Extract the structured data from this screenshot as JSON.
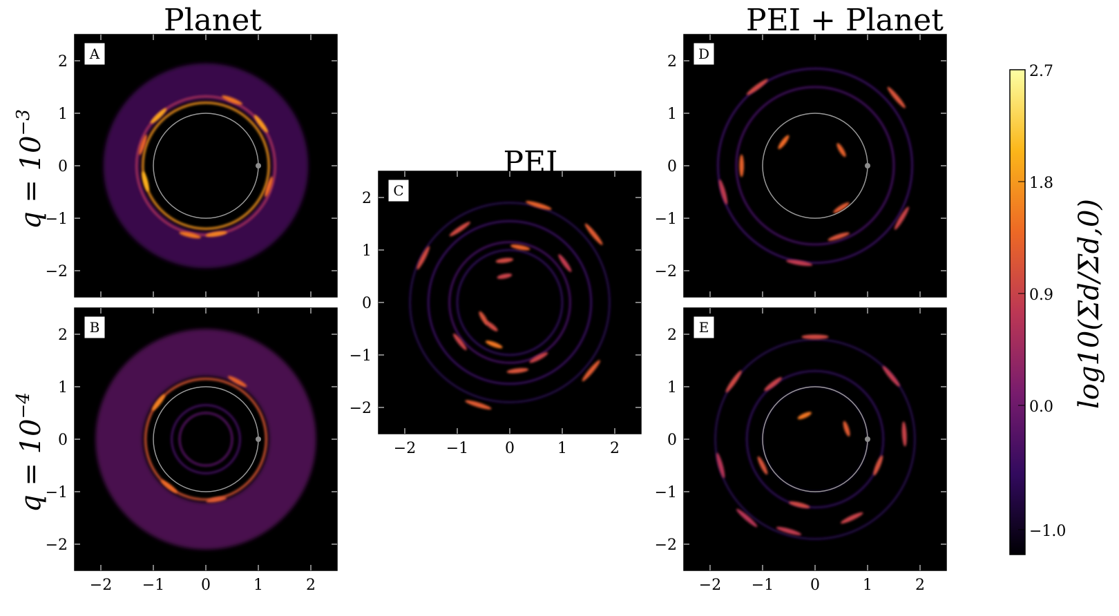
{
  "figure": {
    "column_titles": [
      "Planet",
      "PEI",
      "PEI + Planet"
    ],
    "row_labels": [
      "q = 10",
      "q = 10"
    ],
    "row_label_exponents": [
      "−3",
      "−4"
    ],
    "colorbar": {
      "label": "log10(Σd/Σd,0)",
      "ticks": [
        "2.7",
        "1.8",
        "0.9",
        "0.0",
        "−1.0"
      ],
      "tick_values": [
        2.7,
        1.8,
        0.9,
        0.0,
        -1.0
      ],
      "range": [
        -1.2,
        2.7
      ],
      "colormap": "inferno",
      "colors": [
        "#000004",
        "#320a5e",
        "#781c6d",
        "#bc3754",
        "#ed6925",
        "#fbb61a",
        "#fcffa4"
      ]
    }
  },
  "chart_data": [
    {
      "type": "heatmap",
      "panel": "A",
      "xlim": [
        -2.5,
        2.5
      ],
      "ylim": [
        -2.5,
        2.5
      ],
      "xticks": [
        "−2",
        "−1",
        "0",
        "1",
        "2"
      ],
      "xtick_values": [
        -2,
        -1,
        0,
        1,
        2
      ],
      "yticks": [
        "2",
        "1",
        "0",
        "−1",
        "−2"
      ],
      "ytick_values": [
        2,
        1,
        0,
        -1,
        -2
      ],
      "show_xticklabels": false,
      "planet": {
        "x": 1.0,
        "y": 0.0
      },
      "reference_circle_radius": 1.0,
      "disk": {
        "inner_radius": 1.25,
        "outer_radius": 1.95,
        "level": -0.3
      },
      "rings": [
        {
          "r": 1.2,
          "level": 1.8
        },
        {
          "r": 1.32,
          "level": 0.6
        }
      ],
      "clumps": [
        {
          "x": -0.9,
          "y": 0.95,
          "level": 1.9
        },
        {
          "x": 1.05,
          "y": 0.8,
          "level": 1.8
        },
        {
          "x": -1.15,
          "y": -0.3,
          "level": 2.0
        },
        {
          "x": 0.2,
          "y": -1.3,
          "level": 1.6
        },
        {
          "x": -0.3,
          "y": -1.32,
          "level": 1.5
        },
        {
          "x": 1.2,
          "y": -0.4,
          "level": 1.4
        },
        {
          "x": 0.5,
          "y": 1.25,
          "level": 1.5
        },
        {
          "x": -1.2,
          "y": 0.4,
          "level": 1.3
        }
      ]
    },
    {
      "type": "heatmap",
      "panel": "B",
      "xlim": [
        -2.5,
        2.5
      ],
      "ylim": [
        -2.5,
        2.5
      ],
      "xticks": [
        "−2",
        "−1",
        "0",
        "1",
        "2"
      ],
      "xtick_values": [
        -2,
        -1,
        0,
        1,
        2
      ],
      "yticks": [
        "2",
        "1",
        "0",
        "−1",
        "−2"
      ],
      "ytick_values": [
        2,
        1,
        0,
        -1,
        -2
      ],
      "show_xticklabels": true,
      "planet": {
        "x": 1.0,
        "y": 0.0
      },
      "reference_circle_radius": 1.0,
      "disk": {
        "inner_radius": 1.2,
        "outer_radius": 2.1,
        "level": -0.1
      },
      "rings": [
        {
          "r": 0.5,
          "level": -0.2
        },
        {
          "r": 0.65,
          "level": -0.4
        },
        {
          "r": 1.15,
          "level": 1.2
        }
      ],
      "clumps": [
        {
          "x": -0.9,
          "y": 0.7,
          "level": 1.6
        },
        {
          "x": 0.6,
          "y": 1.1,
          "level": 1.3
        },
        {
          "x": -0.7,
          "y": -0.9,
          "level": 1.4
        },
        {
          "x": 0.2,
          "y": -1.15,
          "level": 1.2
        }
      ]
    },
    {
      "type": "heatmap",
      "panel": "C",
      "xlim": [
        -2.5,
        2.5
      ],
      "ylim": [
        -2.5,
        2.5
      ],
      "xticks": [
        "−2",
        "−1",
        "0",
        "1",
        "2"
      ],
      "xtick_values": [
        -2,
        -1,
        0,
        1,
        2
      ],
      "yticks": [
        "2",
        "1",
        "0",
        "−1",
        "−2"
      ],
      "ytick_values": [
        2,
        1,
        0,
        -1,
        -2
      ],
      "show_xticklabels": true,
      "planet": null,
      "reference_circle_radius": null,
      "rings": [
        {
          "r": 1.0,
          "level": -0.6
        },
        {
          "r": 1.15,
          "level": -0.4
        },
        {
          "r": 1.55,
          "level": -0.5
        },
        {
          "r": 1.9,
          "level": -0.7
        }
      ],
      "clumps": [
        {
          "x": 0.2,
          "y": 1.05,
          "level": 1.3
        },
        {
          "x": -0.1,
          "y": 0.8,
          "level": 1.0
        },
        {
          "x": -0.1,
          "y": 0.5,
          "level": 0.9
        },
        {
          "x": -0.5,
          "y": -0.3,
          "level": 1.1
        },
        {
          "x": -0.35,
          "y": -0.45,
          "level": 1.0
        },
        {
          "x": -0.3,
          "y": -0.8,
          "level": 1.5
        },
        {
          "x": -0.95,
          "y": -0.75,
          "level": 0.9
        },
        {
          "x": 0.55,
          "y": -1.05,
          "level": 0.9
        },
        {
          "x": 1.05,
          "y": 0.75,
          "level": 0.8
        },
        {
          "x": -0.95,
          "y": 1.4,
          "level": 1.0
        },
        {
          "x": 1.6,
          "y": 1.3,
          "level": 1.2
        },
        {
          "x": 1.55,
          "y": -1.3,
          "level": 1.2
        },
        {
          "x": -0.6,
          "y": -1.95,
          "level": 1.2
        },
        {
          "x": 0.55,
          "y": 1.85,
          "level": 1.3
        },
        {
          "x": -1.65,
          "y": 0.85,
          "level": 1.0
        },
        {
          "x": 0.15,
          "y": -1.3,
          "level": 1.1
        }
      ]
    },
    {
      "type": "heatmap",
      "panel": "D",
      "xlim": [
        -2.5,
        2.5
      ],
      "ylim": [
        -2.5,
        2.5
      ],
      "xticks": [
        "−2",
        "−1",
        "0",
        "1",
        "2"
      ],
      "xtick_values": [
        -2,
        -1,
        0,
        1,
        2
      ],
      "yticks": [
        "2",
        "1",
        "0",
        "−1",
        "−2"
      ],
      "ytick_values": [
        2,
        1,
        0,
        -1,
        -2
      ],
      "show_xticklabels": false,
      "planet": {
        "x": 1.0,
        "y": 0.0
      },
      "reference_circle_radius": 1.0,
      "rings": [
        {
          "r": 1.5,
          "level": -0.4
        },
        {
          "r": 1.85,
          "level": -0.5
        }
      ],
      "clumps": [
        {
          "x": -0.6,
          "y": 0.45,
          "level": 1.4
        },
        {
          "x": 0.5,
          "y": 0.3,
          "level": 1.3
        },
        {
          "x": 0.5,
          "y": -0.8,
          "level": 1.2
        },
        {
          "x": -1.4,
          "y": 0.0,
          "level": 1.3
        },
        {
          "x": 0.45,
          "y": -1.35,
          "level": 1.1
        },
        {
          "x": 1.55,
          "y": 1.3,
          "level": 1.1
        },
        {
          "x": -1.1,
          "y": 1.5,
          "level": 1.0
        },
        {
          "x": -0.3,
          "y": -1.85,
          "level": 0.8
        },
        {
          "x": 1.65,
          "y": -1.0,
          "level": 0.9
        },
        {
          "x": -1.75,
          "y": -0.5,
          "level": 0.8
        }
      ]
    },
    {
      "type": "heatmap",
      "panel": "E",
      "xlim": [
        -2.5,
        2.5
      ],
      "ylim": [
        -2.5,
        2.5
      ],
      "xticks": [
        "−2",
        "−1",
        "0",
        "1",
        "2"
      ],
      "xtick_values": [
        -2,
        -1,
        0,
        1,
        2
      ],
      "yticks": [
        "2",
        "1",
        "0",
        "−1",
        "−2"
      ],
      "ytick_values": [
        2,
        1,
        0,
        -1,
        -2
      ],
      "show_xticklabels": true,
      "planet": {
        "x": 1.0,
        "y": 0.0
      },
      "reference_circle_radius": 1.0,
      "rings": [
        {
          "r": 1.0,
          "level": -1.0
        },
        {
          "r": 1.3,
          "level": -0.6
        },
        {
          "r": 1.9,
          "level": -0.7
        }
      ],
      "clumps": [
        {
          "x": -0.2,
          "y": 0.45,
          "level": 1.5
        },
        {
          "x": 0.6,
          "y": 0.2,
          "level": 1.2
        },
        {
          "x": -1.0,
          "y": -0.5,
          "level": 1.1
        },
        {
          "x": -0.8,
          "y": 1.05,
          "level": 0.9
        },
        {
          "x": 1.2,
          "y": -0.5,
          "level": 1.1
        },
        {
          "x": 0.0,
          "y": 1.95,
          "level": 1.0
        },
        {
          "x": -1.55,
          "y": 1.1,
          "level": 1.0
        },
        {
          "x": 1.7,
          "y": 0.1,
          "level": 0.9
        },
        {
          "x": -1.8,
          "y": -0.5,
          "level": 0.7
        },
        {
          "x": -0.5,
          "y": -1.75,
          "level": 0.8
        },
        {
          "x": 0.7,
          "y": -1.5,
          "level": 0.9
        },
        {
          "x": 1.45,
          "y": 1.2,
          "level": 0.8
        },
        {
          "x": -0.3,
          "y": -1.25,
          "level": 1.0
        },
        {
          "x": -1.3,
          "y": -1.5,
          "level": 0.7
        }
      ]
    }
  ]
}
